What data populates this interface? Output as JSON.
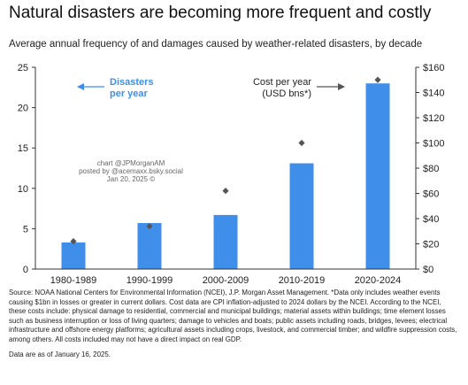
{
  "header": {
    "title": "Natural disasters are becoming more frequent and costly",
    "subtitle": "Average annual frequency of and damages caused by weather-related disasters, by decade"
  },
  "chart_data": {
    "type": "bar",
    "categories": [
      "1980-1989",
      "1990-1999",
      "2000-2009",
      "2010-2019",
      "2020-2024"
    ],
    "series": [
      {
        "name": "Disasters per year",
        "type": "bar",
        "axis": "left",
        "color": "#3f8ee9",
        "values": [
          3.3,
          5.7,
          6.7,
          13.1,
          23.0
        ]
      },
      {
        "name": "Cost per year (USD bns*)",
        "type": "scatter",
        "marker": "diamond",
        "axis": "right",
        "color": "#555555",
        "values": [
          22,
          34,
          62,
          100,
          150
        ]
      }
    ],
    "left_axis": {
      "min": 0,
      "max": 25,
      "ticks": [
        "0",
        "5",
        "10",
        "15",
        "20",
        "25"
      ]
    },
    "right_axis": {
      "min": 0,
      "max": 160,
      "ticks": [
        "$0",
        "$20",
        "$40",
        "$60",
        "$80",
        "$100",
        "$120",
        "$140",
        "$160"
      ]
    },
    "grid": false,
    "annotations": {
      "disasters_label": [
        "Disasters",
        "per year"
      ],
      "cost_label": [
        "Cost per year",
        "(USD bns*)"
      ],
      "watermark": [
        "chart @JPMorganAM",
        "posted by @acemaxx.bsky.social",
        "Jan 20, 2025 ©"
      ]
    }
  },
  "footer": {
    "source": "Source: NOAA National Centers for Environmental Information (NCEI), J.P. Morgan Asset Management. *Data only includes weather events causing $1bn in losses or greater in current dollars. Cost data are CPI inflation-adjusted to 2024 dollars by the NCEI. According to the NCEI, these costs include: physical damage to residential, commercial and municipal buildings; material assets within buildings; time element losses such as business interruption or loss of living quarters; damage to vehicles and boats; public assets including roads, bridges, levees; electrical infrastructure and offshore energy platforms; agricultural assets including crops, livestock, and commercial timber; and wildfire suppression costs, among others. All costs included may not have a direct impact on real GDP.",
    "as_of": "Data are as of January 16, 2025."
  }
}
